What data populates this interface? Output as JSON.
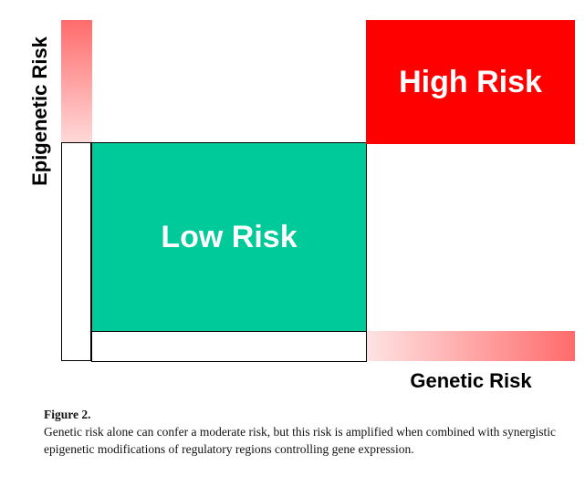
{
  "diagram": {
    "y_axis_label": "Epigenetic Risk",
    "x_axis_label": "Genetic Risk",
    "regions": {
      "low_risk": "Low Risk",
      "high_risk": "High Risk"
    },
    "colors": {
      "low_risk": "#00c99a",
      "high_risk": "#ff0000",
      "axis_gradient_strong": "#ff6b6b",
      "axis_gradient_light": "#ffd9d9"
    }
  },
  "caption": {
    "title": "Figure 2.",
    "text": "Genetic risk alone can confer a moderate risk, but this risk is amplified when combined with synergistic epigenetic modifications of regulatory regions controlling gene expression."
  }
}
